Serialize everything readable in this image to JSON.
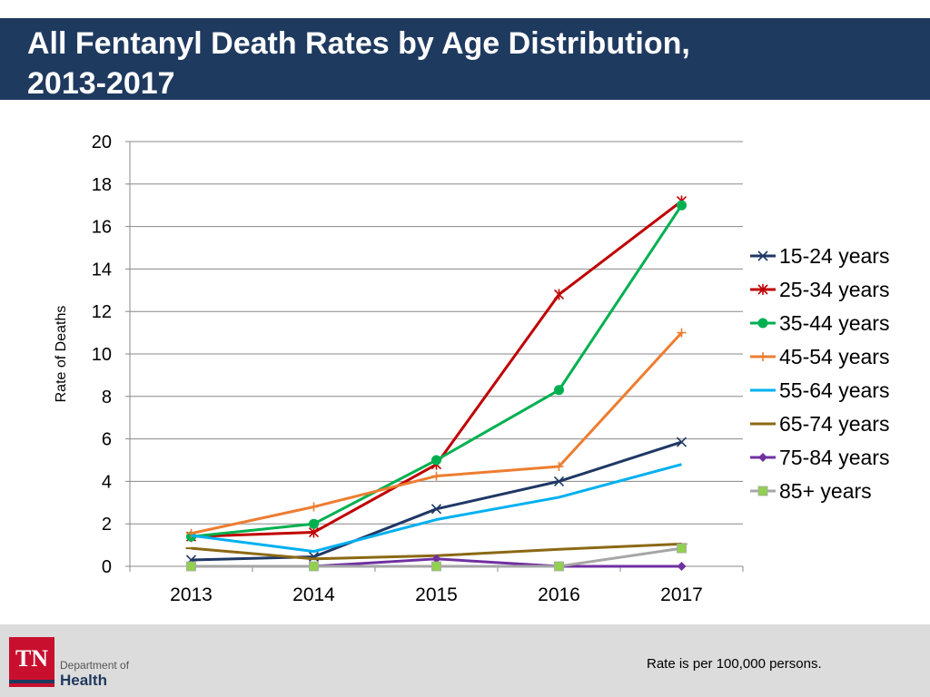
{
  "title": {
    "line1": "All Fentanyl Death Rates by Age Distribution,",
    "line2": "2013-2017"
  },
  "chart_data": {
    "type": "line",
    "title": "All Fentanyl Death Rates by Age Distribution, 2013-2017",
    "ylabel": "Rate of Deaths",
    "xlabel": "",
    "categories": [
      "2013",
      "2014",
      "2015",
      "2016",
      "2017"
    ],
    "ylim": [
      0,
      20
    ],
    "yticks": [
      0,
      2,
      4,
      6,
      8,
      10,
      12,
      14,
      16,
      18,
      20
    ],
    "grid": true,
    "legend_position": "right",
    "series": [
      {
        "name": "15-24 years",
        "values": [
          0.3,
          0.45,
          2.7,
          4.0,
          5.85
        ],
        "color": "#1f3864",
        "marker": "x"
      },
      {
        "name": "25-34 years",
        "values": [
          1.4,
          1.6,
          4.8,
          12.8,
          17.2
        ],
        "color": "#c00000",
        "marker": "star"
      },
      {
        "name": "35-44 years",
        "values": [
          1.4,
          2.0,
          5.0,
          8.3,
          17.0
        ],
        "color": "#00b050",
        "marker": "circle"
      },
      {
        "name": "45-54 years",
        "values": [
          1.55,
          2.8,
          4.25,
          4.7,
          11.0
        ],
        "color": "#ed7d31",
        "marker": "plus"
      },
      {
        "name": "55-64 years",
        "values": [
          1.45,
          0.7,
          2.2,
          3.25,
          4.8
        ],
        "color": "#00b0f0",
        "marker": "none"
      },
      {
        "name": "65-74 years",
        "values": [
          0.85,
          0.35,
          0.5,
          0.8,
          1.05
        ],
        "color": "#8b6914",
        "marker": "dash"
      },
      {
        "name": "75-84 years",
        "values": [
          0.0,
          0.0,
          0.35,
          0.0,
          0.0
        ],
        "color": "#7030a0",
        "marker": "diamond"
      },
      {
        "name": "85+ years",
        "values": [
          0.0,
          0.0,
          0.0,
          0.0,
          0.85
        ],
        "color": "#a6a6a6",
        "marker": "square",
        "marker_fill": "#92d050"
      }
    ]
  },
  "footer": {
    "note": "Rate is per 100,000 persons.",
    "logo_abbr": "TN",
    "logo_line1": "Department of",
    "logo_line2": "Health"
  }
}
